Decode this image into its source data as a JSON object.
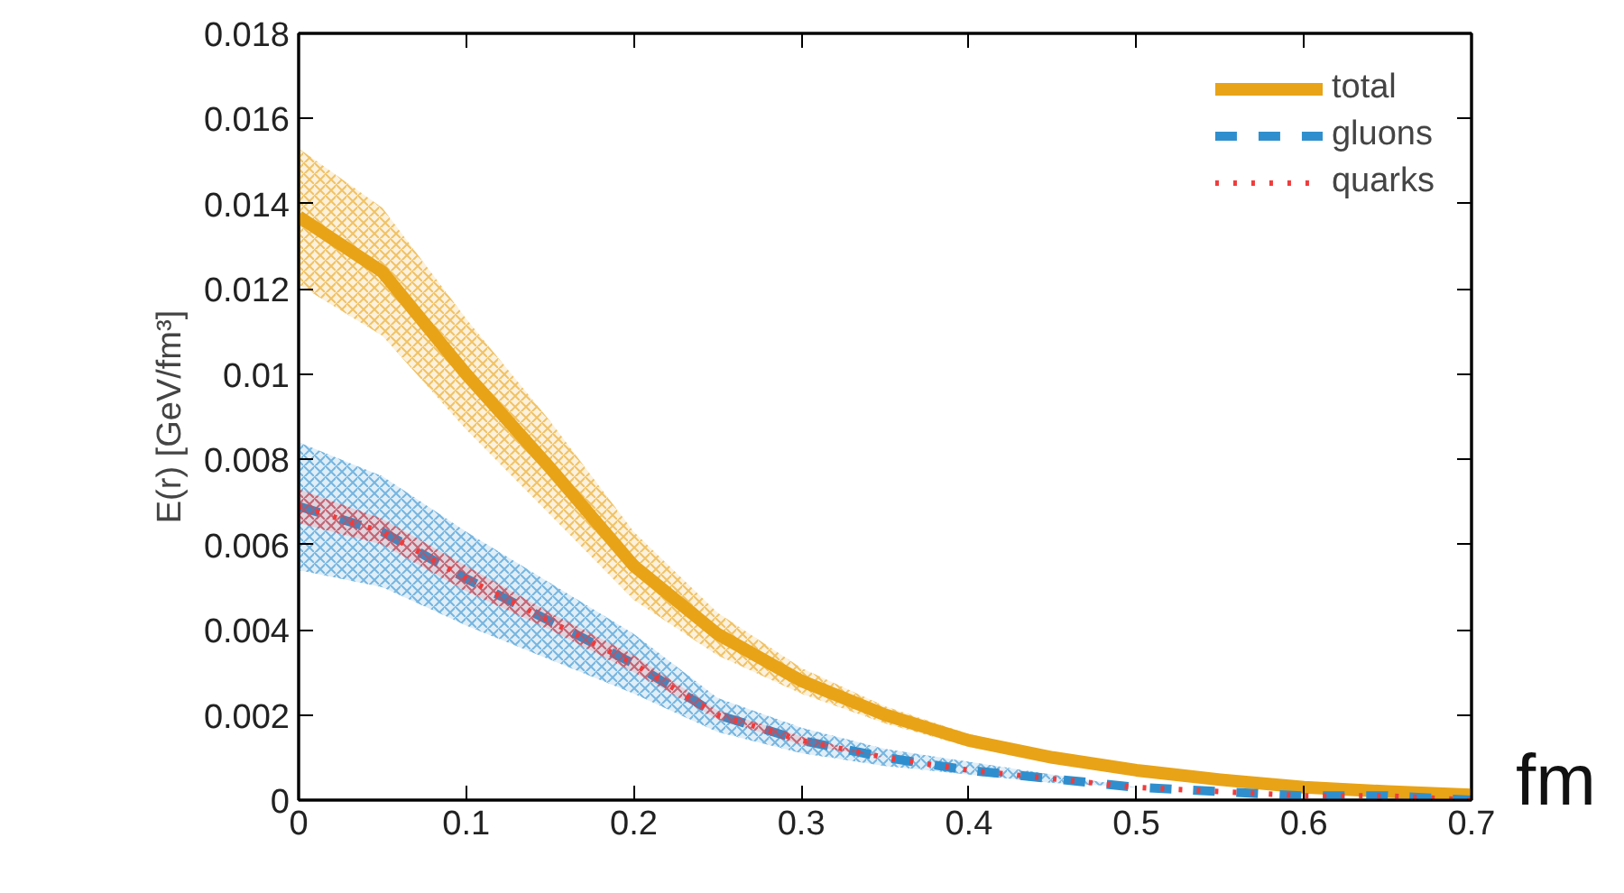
{
  "chart_data": {
    "type": "line",
    "xlabel": "fm",
    "ylabel": "E(r) [GeV/fm³]",
    "xlim": [
      0,
      0.7
    ],
    "ylim": [
      0,
      0.018
    ],
    "xticks": [
      0,
      0.1,
      0.2,
      0.3,
      0.4,
      0.5,
      0.6,
      0.7
    ],
    "yticks": [
      0,
      0.002,
      0.004,
      0.006,
      0.008,
      0.01,
      0.012,
      0.014,
      0.016,
      0.018
    ],
    "x": [
      0,
      0.05,
      0.1,
      0.15,
      0.2,
      0.25,
      0.3,
      0.35,
      0.4,
      0.45,
      0.5,
      0.55,
      0.6,
      0.65,
      0.7
    ],
    "series": [
      {
        "name": "total",
        "color": "#e8a317",
        "line_style": "solid",
        "values": [
          0.0137,
          0.0124,
          0.01,
          0.0078,
          0.0055,
          0.0039,
          0.0028,
          0.002,
          0.0014,
          0.001,
          0.0007,
          0.00048,
          0.0003,
          0.0002,
          0.00012
        ],
        "lower": [
          0.0121,
          0.0109,
          0.0087,
          0.0067,
          0.0047,
          0.0034,
          0.0025,
          0.0018,
          0.00125,
          0.0009,
          0.0007,
          0.00048,
          0.0003,
          0.0002,
          0.00012
        ],
        "upper": [
          0.0153,
          0.0139,
          0.0113,
          0.0089,
          0.0063,
          0.0044,
          0.0031,
          0.0022,
          0.00155,
          0.0011,
          0.0007,
          0.00048,
          0.0003,
          0.0002,
          0.00012
        ]
      },
      {
        "name": "gluons",
        "color": "#2f8fce",
        "line_style": "dashed",
        "values": [
          0.0069,
          0.0063,
          0.0052,
          0.0042,
          0.0032,
          0.002,
          0.0014,
          0.001,
          0.0007,
          0.0005,
          0.0003,
          0.0002,
          0.0001,
          0.0001,
          0
        ],
        "lower": [
          0.0054,
          0.005,
          0.0041,
          0.0033,
          0.0025,
          0.0016,
          0.0011,
          0.0008,
          0.0006,
          0.0004,
          0.0003,
          0.0002,
          0.0001,
          0.0001,
          0
        ],
        "upper": [
          0.0084,
          0.0076,
          0.0063,
          0.0051,
          0.0039,
          0.0024,
          0.0017,
          0.0012,
          0.0009,
          0.0006,
          0.0003,
          0.0002,
          0.0001,
          0.0001,
          0
        ]
      },
      {
        "name": "quarks",
        "color": "#f03c3c",
        "line_style": "dotted",
        "values": [
          0.0069,
          0.0063,
          0.0052,
          0.0042,
          0.0032,
          0.002,
          0.0014,
          0.001,
          0.0007,
          0.0005,
          0.0003,
          0.0002,
          0.0001,
          0.0001,
          0
        ],
        "lower": [
          0.0065,
          0.006,
          0.0049,
          0.004,
          0.003,
          0.0019,
          0.0013,
          0.001,
          0.0007,
          0.0005,
          0.0003,
          0.0002,
          0.0001,
          0.0001,
          0
        ],
        "upper": [
          0.0073,
          0.0066,
          0.0055,
          0.0044,
          0.0034,
          0.0021,
          0.0015,
          0.001,
          0.0007,
          0.0005,
          0.0003,
          0.0002,
          0.0001,
          0.0001,
          0
        ]
      }
    ],
    "legend": "top right",
    "grid": false
  }
}
